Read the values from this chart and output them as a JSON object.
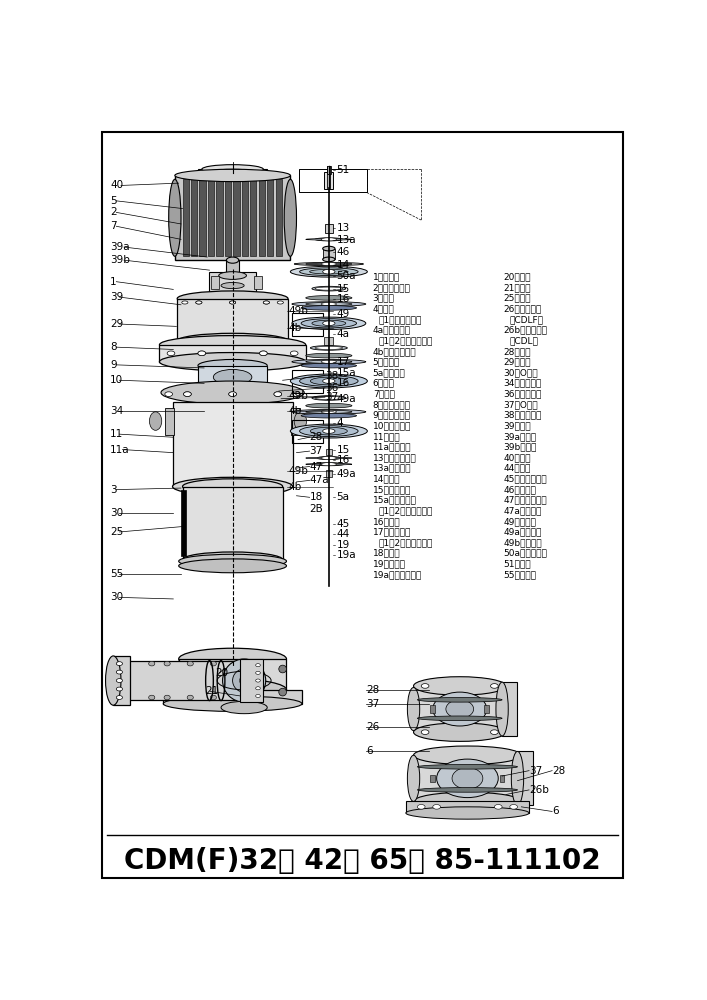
{
  "title": "CDM(F)32， 42， 65， 85-111102",
  "bg_color": "#ffffff",
  "border_color": "#000000",
  "parts_list_left": [
    [
      "1、防护板",
      false
    ],
    [
      "2、内六角螺钉",
      false
    ],
    [
      "3、泵头",
      false
    ],
    [
      "4、导叶",
      false
    ],
    [
      "（1级泵不存在）",
      true
    ],
    [
      "4a、支撑导叶",
      false
    ],
    [
      "（1、2级泵不存在）",
      true
    ],
    [
      "4b、口环座组件",
      false
    ],
    [
      "5、联轴器",
      false
    ],
    [
      "5a、导流器",
      false
    ],
    [
      "6、底座",
      false
    ],
    [
      "7、支架",
      false
    ],
    [
      "8、内六角螺钉",
      false
    ],
    [
      "9、内六角螺钉",
      false
    ],
    [
      "10、密封压盖",
      false
    ],
    [
      "11、螺母",
      false
    ],
    [
      "11a、平垫片",
      false
    ],
    [
      "13、内六角螺钉",
      false
    ],
    [
      "13a、平垫圈",
      false
    ],
    [
      "14、拉带",
      false
    ],
    [
      "15、叶轮螺母",
      false
    ],
    [
      "15a、支撑螺母",
      false
    ],
    [
      "（1、2级泵不存在）",
      true
    ],
    [
      "16、锥套",
      false
    ],
    [
      "17、中间轴套",
      false
    ],
    [
      "（1、2级泵不存在）",
      true
    ],
    [
      "18、压盖",
      false
    ],
    [
      "19、平垫圈",
      false
    ],
    [
      "19a、内六角螺钉",
      false
    ]
  ],
  "parts_list_right": [
    [
      "20、法兰",
      false
    ],
    [
      "21、卡环",
      false
    ],
    [
      "25、拉杆",
      false
    ],
    [
      "26、进出水段",
      false
    ],
    [
      "（CDLF）",
      true
    ],
    [
      "26b、进出水段",
      false
    ],
    [
      "（CDL）",
      true
    ],
    [
      "28、螺堡",
      false
    ],
    [
      "29、螺钉",
      false
    ],
    [
      "30、O形圈",
      false
    ],
    [
      "34、机械密封",
      false
    ],
    [
      "36、放气螺堡",
      false
    ],
    [
      "37、O形圈",
      false
    ],
    [
      "38、放气螺栓",
      false
    ],
    [
      "39、螺钉",
      false
    ],
    [
      "39a、螺母",
      false
    ],
    [
      "39b、垫圈",
      false
    ],
    [
      "40、电机",
      false
    ],
    [
      "44、墊片",
      false
    ],
    [
      "45、内六角螺钉",
      false
    ],
    [
      "46、调节簧",
      false
    ],
    [
      "47、下滑动轴承",
      false
    ],
    [
      "47a、下轴届",
      false
    ],
    [
      "49、小叶轮",
      false
    ],
    [
      "49a、大叶轮",
      false
    ],
    [
      "49b、口环套",
      false
    ],
    [
      "50a、出水导叶",
      false
    ],
    [
      "51、泵轴",
      false
    ],
    [
      "55、耐压筒",
      false
    ]
  ]
}
